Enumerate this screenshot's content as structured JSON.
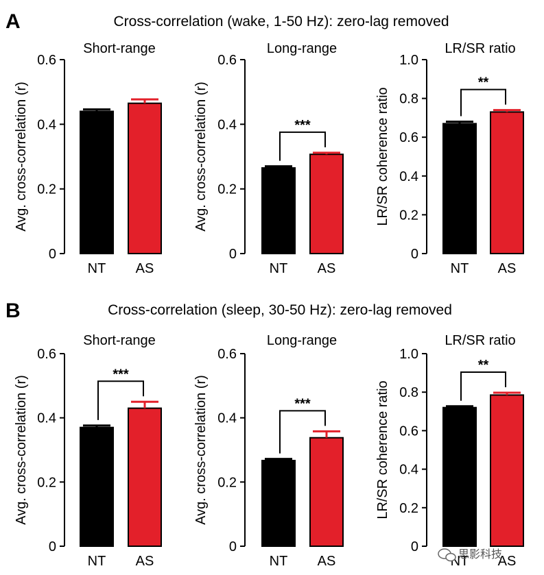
{
  "panels": [
    {
      "letter": "A",
      "heading": "Cross-correlation (wake, 1-50 Hz): zero-lag removed"
    },
    {
      "letter": "B",
      "heading": "Cross-correlation (sleep, 30-50 Hz): zero-lag removed"
    }
  ],
  "colors": {
    "NT": "#000000",
    "AS": "#e3202a",
    "axis": "#000000"
  },
  "watermark": {
    "icon": "wechat-icon",
    "text": "思影科技"
  },
  "chart_data": [
    {
      "type": "bar",
      "panel": "A",
      "title": "Short-range",
      "ylabel": "Avg. cross-correlation (r)",
      "categories": [
        "NT",
        "AS"
      ],
      "values": [
        0.44,
        0.465
      ],
      "errors": [
        0.006,
        0.012
      ],
      "ylim": [
        0,
        0.6
      ],
      "yticks": [
        "0",
        "0.2",
        "0.4",
        "0.6"
      ],
      "significance": ""
    },
    {
      "type": "bar",
      "panel": "A",
      "title": "Long-range",
      "ylabel": "Avg. cross-correlation (r)",
      "categories": [
        "NT",
        "AS"
      ],
      "values": [
        0.265,
        0.307
      ],
      "errors": [
        0.005,
        0.005
      ],
      "ylim": [
        0,
        0.6
      ],
      "yticks": [
        "0",
        "0.2",
        "0.4",
        "0.6"
      ],
      "significance": "***"
    },
    {
      "type": "bar",
      "panel": "A",
      "title": "LR/SR ratio",
      "ylabel": "LR/SR coherence ratio",
      "categories": [
        "NT",
        "AS"
      ],
      "values": [
        0.67,
        0.73
      ],
      "errors": [
        0.01,
        0.01
      ],
      "ylim": [
        0,
        1.0
      ],
      "yticks": [
        "0",
        "0.2",
        "0.4",
        "0.6",
        "0.8",
        "1.0"
      ],
      "significance": "**"
    },
    {
      "type": "bar",
      "panel": "B",
      "title": "Short-range",
      "ylabel": "Avg. cross-correlation (r)",
      "categories": [
        "NT",
        "AS"
      ],
      "values": [
        0.37,
        0.43
      ],
      "errors": [
        0.006,
        0.02
      ],
      "ylim": [
        0,
        0.6
      ],
      "yticks": [
        "0",
        "0.2",
        "0.4",
        "0.6"
      ],
      "significance": "***"
    },
    {
      "type": "bar",
      "panel": "B",
      "title": "Long-range",
      "ylabel": "Avg. cross-correlation (r)",
      "categories": [
        "NT",
        "AS"
      ],
      "values": [
        0.267,
        0.338
      ],
      "errors": [
        0.005,
        0.02
      ],
      "ylim": [
        0,
        0.6
      ],
      "yticks": [
        "0",
        "0.2",
        "0.4",
        "0.6"
      ],
      "significance": "***"
    },
    {
      "type": "bar",
      "panel": "B",
      "title": "LR/SR ratio",
      "ylabel": "LR/SR coherence ratio",
      "categories": [
        "NT",
        "AS"
      ],
      "values": [
        0.72,
        0.785
      ],
      "errors": [
        0.007,
        0.012
      ],
      "ylim": [
        0,
        1.0
      ],
      "yticks": [
        "0",
        "0.2",
        "0.4",
        "0.6",
        "0.8",
        "1.0"
      ],
      "significance": "**"
    }
  ]
}
